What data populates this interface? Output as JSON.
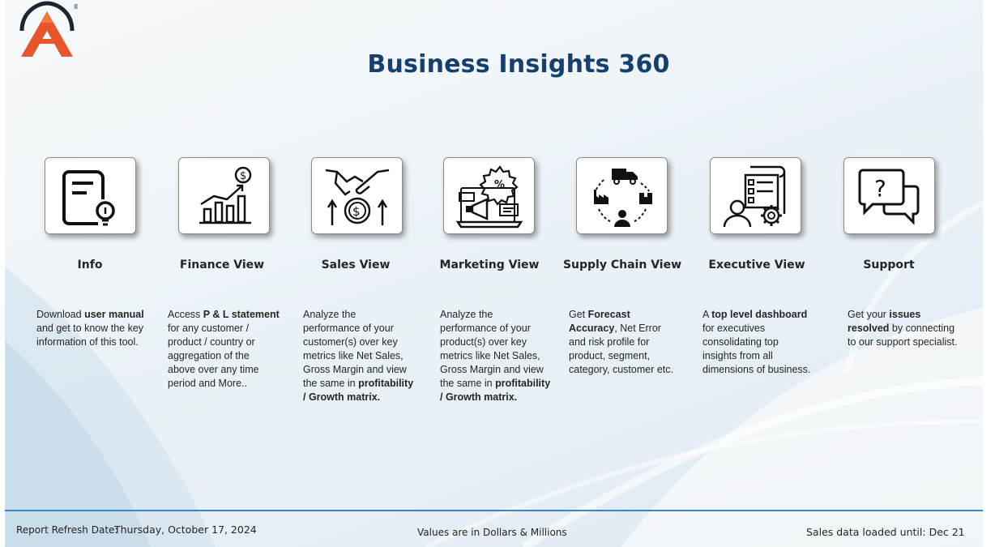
{
  "header": {
    "title": "Business Insights 360",
    "logo_mark": "®"
  },
  "cards": [
    {
      "id": "info",
      "icon": "document-lightbulb-icon",
      "title": "Info",
      "desc": [
        {
          "t": "Download "
        },
        {
          "t": "user manual",
          "b": true
        },
        {
          "t": " and get to know the key information of this tool."
        }
      ]
    },
    {
      "id": "finance",
      "icon": "growth-chart-dollar-icon",
      "title": "Finance View",
      "desc": [
        {
          "t": "Access "
        },
        {
          "t": "P & L statement",
          "b": true
        },
        {
          "t": " for any customer / product / country or aggregation of the above over any time period and More.."
        }
      ]
    },
    {
      "id": "sales",
      "icon": "handshake-dollar-icon",
      "title": "Sales View",
      "desc": [
        {
          "t": "Analyze the performance of your customer(s) over key metrics like Net Sales, Gross Margin and view the same in "
        },
        {
          "t": "profitability / Growth matrix.",
          "b": true
        }
      ]
    },
    {
      "id": "marketing",
      "icon": "marketing-megaphone-icon",
      "title": "Marketing View",
      "desc": [
        {
          "t": "Analyze the performance of your product(s) over key metrics like Net Sales, Gross Margin and view the same in "
        },
        {
          "t": "profitability / Growth matrix.",
          "b": true
        }
      ]
    },
    {
      "id": "supply",
      "icon": "supply-chain-cycle-icon",
      "title": "Supply Chain View",
      "desc": [
        {
          "t": "Get "
        },
        {
          "t": "Forecast Accuracy",
          "b": true
        },
        {
          "t": ", Net Error and risk profile for product, segment, category, customer etc."
        }
      ]
    },
    {
      "id": "executive",
      "icon": "executive-report-gear-icon",
      "title": "Executive View",
      "desc": [
        {
          "t": "A "
        },
        {
          "t": "top level dashboard",
          "b": true
        },
        {
          "t": " for executives consolidating top insights from all dimensions of business."
        }
      ]
    },
    {
      "id": "support",
      "icon": "support-chat-question-icon",
      "title": "Support",
      "desc": [
        {
          "t": "Get your "
        },
        {
          "t": "issues resolved",
          "b": true
        },
        {
          "t": " by connecting to our support specialist."
        }
      ]
    }
  ],
  "footer": {
    "refresh_label": "Report Refresh Date:",
    "refresh_date": "Thursday, October 17, 2024",
    "units_note": "Values are in Dollars & Millions",
    "loaded_until": "Sales data loaded until: Dec 21"
  },
  "colors": {
    "title": "#15406e",
    "accent_rule": "#3f85c6",
    "logo_orange": "#e8552b",
    "logo_dark": "#1e2433"
  }
}
